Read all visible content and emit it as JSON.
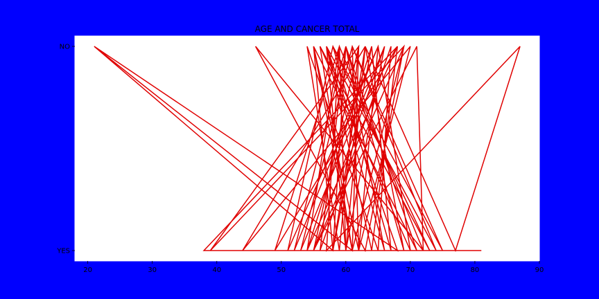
{
  "chart_data": {
    "type": "line",
    "title": "AGE AND CANCER TOTAL",
    "xlabel": "",
    "ylabel": "",
    "xlim": [
      18,
      90
    ],
    "x_ticks": [
      20,
      30,
      40,
      50,
      60,
      70,
      80,
      90
    ],
    "y_categories": [
      "YES",
      "NO"
    ],
    "grid": false,
    "colors": {
      "background": "#0000ff",
      "axes": "#ffffff",
      "line": "#e00000"
    },
    "series": [
      {
        "points": [
          [
            21,
            "NO"
          ],
          [
            61,
            "YES"
          ],
          [
            55,
            "NO"
          ],
          [
            58,
            "YES"
          ],
          [
            63,
            "NO"
          ],
          [
            60,
            "YES"
          ],
          [
            59,
            "NO"
          ],
          [
            49,
            "YES"
          ],
          [
            68,
            "NO"
          ],
          [
            64,
            "YES"
          ],
          [
            57,
            "NO"
          ],
          [
            66,
            "YES"
          ],
          [
            60,
            "NO"
          ],
          [
            52,
            "YES"
          ],
          [
            65,
            "NO"
          ],
          [
            70,
            "YES"
          ],
          [
            56,
            "NO"
          ],
          [
            61,
            "YES"
          ],
          [
            62,
            "NO"
          ],
          [
            55,
            "YES"
          ],
          [
            69,
            "NO"
          ],
          [
            63,
            "YES"
          ],
          [
            46,
            "NO"
          ],
          [
            72,
            "YES"
          ],
          [
            59,
            "NO"
          ],
          [
            54,
            "YES"
          ],
          [
            64,
            "NO"
          ],
          [
            67,
            "YES"
          ],
          [
            58,
            "NO"
          ],
          [
            75,
            "YES"
          ],
          [
            61,
            "NO"
          ],
          [
            53,
            "YES"
          ],
          [
            66,
            "NO"
          ],
          [
            60,
            "YES"
          ],
          [
            57,
            "NO"
          ],
          [
            68,
            "YES"
          ],
          [
            21,
            "NO"
          ],
          [
            58,
            "YES"
          ],
          [
            63,
            "NO"
          ],
          [
            44,
            "YES"
          ],
          [
            70,
            "NO"
          ],
          [
            62,
            "YES"
          ],
          [
            55,
            "NO"
          ],
          [
            71,
            "YES"
          ],
          [
            60,
            "NO"
          ],
          [
            56,
            "YES"
          ],
          [
            67,
            "NO"
          ],
          [
            65,
            "YES"
          ],
          [
            54,
            "NO"
          ],
          [
            59,
            "YES"
          ],
          [
            62,
            "NO"
          ],
          [
            39,
            "YES"
          ],
          [
            69,
            "NO"
          ],
          [
            61,
            "YES"
          ],
          [
            56,
            "NO"
          ],
          [
            73,
            "YES"
          ],
          [
            58,
            "NO"
          ],
          [
            51,
            "YES"
          ],
          [
            65,
            "NO"
          ],
          [
            62,
            "YES"
          ],
          [
            61,
            "NO"
          ],
          [
            74,
            "YES"
          ],
          [
            57,
            "NO"
          ],
          [
            60,
            "YES"
          ],
          [
            66,
            "NO"
          ],
          [
            55,
            "YES"
          ],
          [
            71,
            "NO"
          ],
          [
            72,
            "YES"
          ],
          [
            59,
            "NO"
          ],
          [
            57,
            "YES"
          ],
          [
            87,
            "NO"
          ],
          [
            77,
            "YES"
          ],
          [
            63,
            "NO"
          ],
          [
            69,
            "YES"
          ],
          [
            60,
            "NO"
          ],
          [
            58,
            "YES"
          ],
          [
            64,
            "NO"
          ],
          [
            54,
            "YES"
          ],
          [
            68,
            "NO"
          ],
          [
            38,
            "YES"
          ],
          [
            81,
            "YES"
          ]
        ]
      }
    ]
  }
}
